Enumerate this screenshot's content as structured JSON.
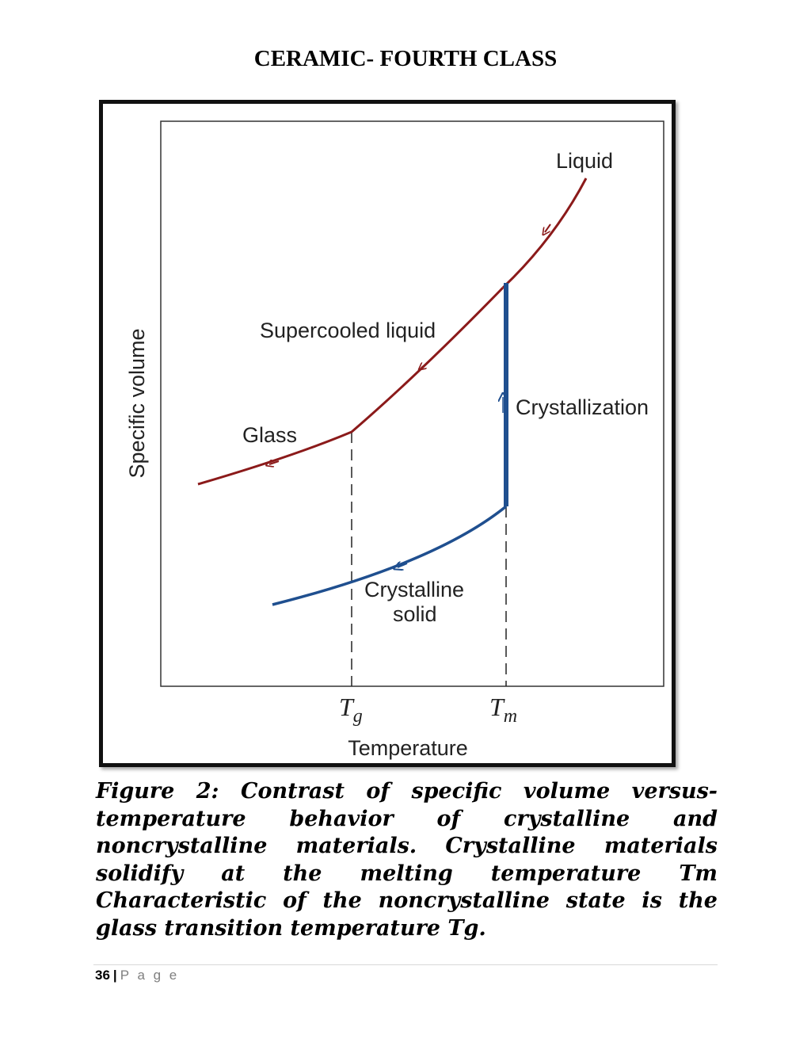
{
  "header": {
    "title": "CERAMIC- FOURTH CLASS"
  },
  "figure": {
    "labels": {
      "liquid": "Liquid",
      "supercooled_liquid": "Supercooled liquid",
      "glass": "Glass",
      "crystallization": "Crystallization",
      "crystalline_solid_line1": "Crystalline",
      "crystalline_solid_line2": "solid",
      "y_axis": "Specific volume",
      "x_axis": "Temperature",
      "tg_main": "T",
      "tg_sub": "g",
      "tm_main": "T",
      "tm_sub": "m"
    },
    "colors": {
      "noncrystalline_curve": "#8b1a1a",
      "crystalline_curve": "#1f4f8f"
    }
  },
  "caption": {
    "text": "Figure 2: Contrast of specific volume versus-temperature behavior of crystalline and noncrystalline materials. Crystalline materials solidify at the melting temperature Tm Characteristic of the noncrystalline state is the glass transition temperature Tg."
  },
  "footer": {
    "page_number": "36",
    "separator": "|",
    "page_label": "P a g e"
  }
}
